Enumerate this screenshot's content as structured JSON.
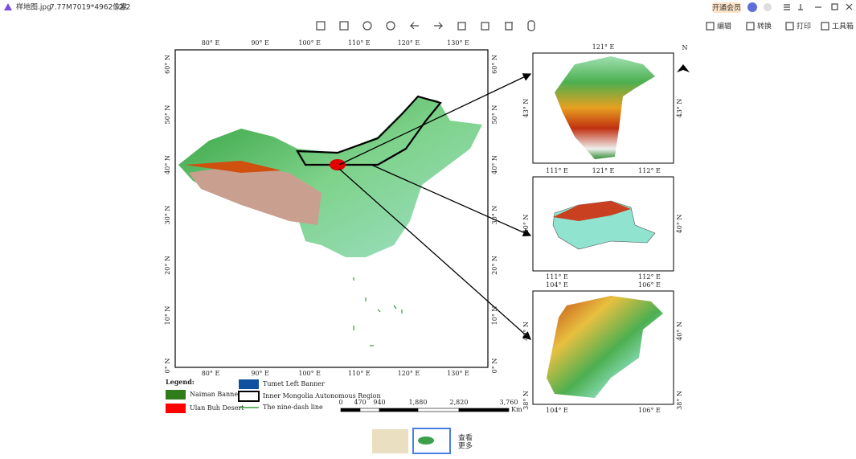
{
  "titlebar": {
    "filename": "样地图.jpg",
    "size": "7.77M",
    "dimensions": "7019*4962像素",
    "page": "2/2"
  },
  "toolbar_right": {
    "vip": "开通会员",
    "edit": "编辑",
    "convert": "转换",
    "print": "打印",
    "toolbox": "工具箱"
  },
  "map": {
    "lon_labels": [
      "80° E",
      "90° E",
      "100° E",
      "110° E",
      "120° E",
      "130° E"
    ],
    "lat_labels": [
      "60° N",
      "50° N",
      "40° N",
      "30° N",
      "20° N",
      "10° N",
      "0° N"
    ],
    "legend": {
      "title": "Legend:",
      "naiman": "Naiman Banner",
      "ulan": "Ulan Buh Desert",
      "tumet": "Tumet Left Banner",
      "inner_mongolia": "Inner Mongolia Autonomous Region",
      "nine_dash": "The nine-dash line"
    },
    "scale": {
      "ticks": [
        "0",
        "470",
        "940",
        "1,880",
        "2,820",
        "3,760"
      ],
      "unit": "Km"
    },
    "north": "N",
    "insets": [
      {
        "top": [
          "121° E"
        ],
        "bottom": [],
        "left": [
          "43° N"
        ],
        "right": [
          "43° N"
        ]
      },
      {
        "top": [
          "111° E",
          "121° E",
          "112° E"
        ],
        "bottom": [
          "111° E",
          "112° E"
        ],
        "left": [
          "40° N"
        ],
        "right": [
          "40° N"
        ]
      },
      {
        "top": [
          "104° E",
          "106° E"
        ],
        "bottom": [
          "104° E",
          "106° E"
        ],
        "left": [
          "40° N",
          "38° N"
        ],
        "right": [
          "40° N",
          "38° N"
        ]
      }
    ]
  },
  "thumbnails": {
    "more_1": "查看",
    "more_2": "更多"
  }
}
